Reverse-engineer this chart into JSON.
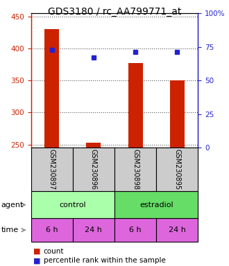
{
  "title": "GDS3180 / rc_AA799771_at",
  "samples": [
    "GSM230897",
    "GSM230896",
    "GSM230898",
    "GSM230895"
  ],
  "counts": [
    430,
    253,
    377,
    350
  ],
  "percentiles": [
    73,
    67,
    71,
    71
  ],
  "ylim_left": [
    245,
    455
  ],
  "ylim_right": [
    0,
    100
  ],
  "yticks_left": [
    250,
    300,
    350,
    400,
    450
  ],
  "yticks_right": [
    0,
    25,
    50,
    75,
    100
  ],
  "ytick_right_labels": [
    "0",
    "25",
    "50",
    "75",
    "100%"
  ],
  "agent_labels": [
    "control",
    "estradiol"
  ],
  "time_labels": [
    "6 h",
    "24 h",
    "6 h",
    "24 h"
  ],
  "control_color": "#aaffaa",
  "estradiol_color": "#66dd66",
  "time_color": "#dd66dd",
  "sample_bg_color": "#cccccc",
  "bar_color": "#cc2200",
  "dot_color": "#2222cc",
  "grid_color": "#555555",
  "white": "#ffffff",
  "title_fontsize": 10,
  "tick_fontsize": 7.5,
  "table_fontsize": 8,
  "legend_fontsize": 7.5,
  "sample_fontsize": 7
}
